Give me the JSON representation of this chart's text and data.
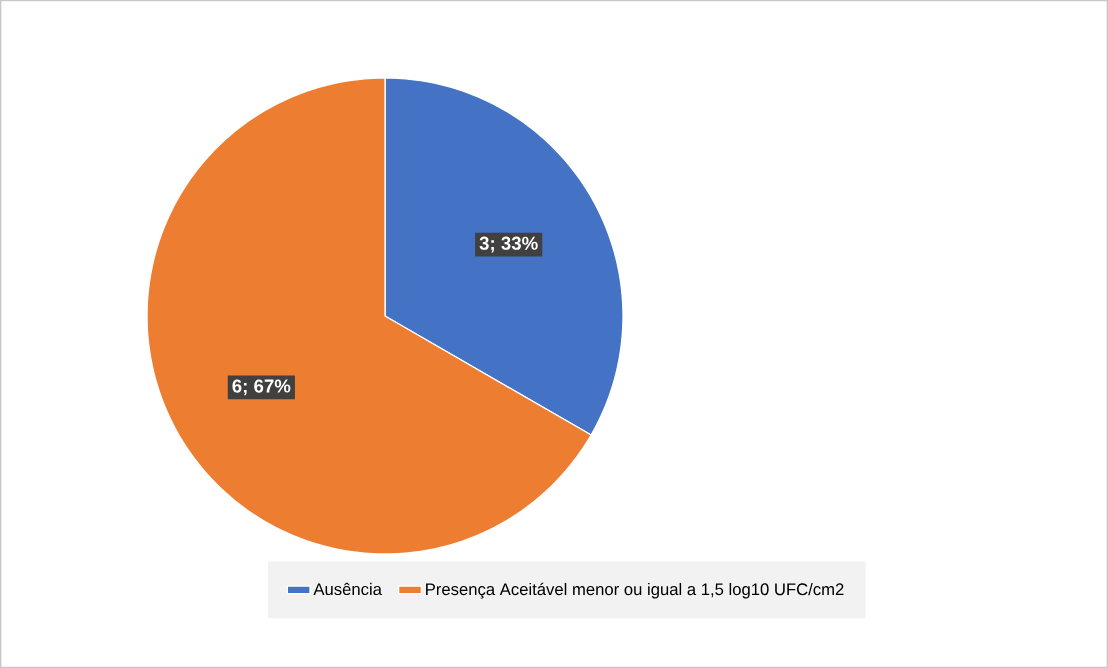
{
  "chart_data": {
    "type": "pie",
    "categories": [
      "Ausência",
      "Presença Aceitável menor ou igual a 1,5 log10 UFC/cm2"
    ],
    "values": [
      3,
      6
    ],
    "colors": [
      "#4472c4",
      "#ed7d31"
    ],
    "value_labels": [
      "3; 33%",
      "6; 67%"
    ],
    "legend": "bottom"
  }
}
